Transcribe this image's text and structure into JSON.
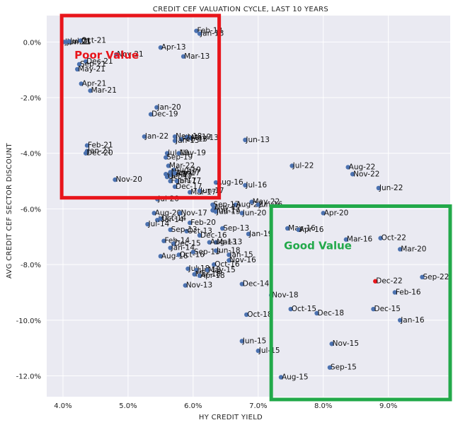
{
  "colors": {
    "background": "#eaeaf2",
    "grid": "#ffffff",
    "point": "#4c72b0",
    "highlight_point": "#e8151b",
    "poor_value_box": "#e8151b",
    "good_value_box": "#22a94a"
  },
  "chart_data": {
    "type": "scatter",
    "title": "CREDIT CEF VALUATION CYCLE, LAST 10 YEARS",
    "xlabel": "HY CREDIT YIELD",
    "ylabel": "AVG CREDIT CEF SECTOR DISCOUNT",
    "xlim": [
      3.75,
      9.95
    ],
    "ylim": [
      -12.75,
      0.95
    ],
    "xticks": [
      4.0,
      5.0,
      6.0,
      7.0,
      8.0,
      9.0
    ],
    "xtick_labels": [
      "4.0%",
      "5.0%",
      "6.0%",
      "7.0%",
      "8.0%",
      "9.0%"
    ],
    "yticks": [
      0,
      -2,
      -4,
      -6,
      -8,
      -10,
      -12
    ],
    "ytick_labels": [
      "0.0%",
      "-2.0%",
      "-4.0%",
      "-6.0%",
      "-8.0%",
      "-10.0%",
      "-12.0%"
    ],
    "grid": true,
    "highlight": "Dec-22",
    "regions": [
      {
        "label": "Poor Value",
        "x_range": [
          3.98,
          6.4
        ],
        "y_range": [
          -5.6,
          0.95
        ],
        "color": "#e8151b"
      },
      {
        "label": "Good Value",
        "x_range": [
          7.2,
          9.95
        ],
        "y_range": [
          -12.85,
          -5.9
        ],
        "color": "#22a94a"
      }
    ],
    "points": [
      {
        "label": "Jan-21",
        "x": 4.02,
        "y": 0.0
      },
      {
        "label": "Jun-21",
        "x": 4.05,
        "y": 0.0
      },
      {
        "label": "Jul-21",
        "x": 4.1,
        "y": 0.02
      },
      {
        "label": "Oct-21",
        "x": 4.27,
        "y": 0.05
      },
      {
        "label": "Nov-21",
        "x": 4.82,
        "y": -0.45
      },
      {
        "label": "Dec-21",
        "x": 4.35,
        "y": -0.7
      },
      {
        "label": "Sep-21",
        "x": 4.25,
        "y": -0.8
      },
      {
        "label": "May-21",
        "x": 4.22,
        "y": -0.98
      },
      {
        "label": "Apr-21",
        "x": 4.28,
        "y": -1.5
      },
      {
        "label": "Mar-21",
        "x": 4.42,
        "y": -1.75
      },
      {
        "label": "Feb-13",
        "x": 6.05,
        "y": 0.4
      },
      {
        "label": "Jan-13",
        "x": 6.1,
        "y": 0.3
      },
      {
        "label": "Apr-13",
        "x": 5.5,
        "y": -0.2
      },
      {
        "label": "Mar-13",
        "x": 5.85,
        "y": -0.52
      },
      {
        "label": "Jan-20",
        "x": 5.44,
        "y": -2.35
      },
      {
        "label": "Dec-19",
        "x": 5.35,
        "y": -2.6
      },
      {
        "label": "Jan-22",
        "x": 5.25,
        "y": -3.4
      },
      {
        "label": "Nov-18",
        "x": 5.72,
        "y": -3.4
      },
      {
        "label": "Jun-19",
        "x": 5.9,
        "y": -3.42
      },
      {
        "label": "May-13",
        "x": 5.96,
        "y": -3.45
      },
      {
        "label": "Feb-13",
        "x": 5.82,
        "y": -3.5
      },
      {
        "label": "Jan-13",
        "x": 5.72,
        "y": -3.55
      },
      {
        "label": "Jun-13",
        "x": 6.8,
        "y": -3.52
      },
      {
        "label": "Feb-21",
        "x": 4.37,
        "y": -3.72
      },
      {
        "label": "Jan-21",
        "x": 4.37,
        "y": -3.92
      },
      {
        "label": "Dec-20",
        "x": 4.35,
        "y": -4.0
      },
      {
        "label": "Jul-19",
        "x": 5.6,
        "y": -4.0
      },
      {
        "label": "Nov-19",
        "x": 5.78,
        "y": -4.0
      },
      {
        "label": "Sep-19",
        "x": 5.58,
        "y": -4.15
      },
      {
        "label": "Mar-22",
        "x": 5.62,
        "y": -4.45
      },
      {
        "label": "Aug-19",
        "x": 5.7,
        "y": -4.6
      },
      {
        "label": "Apr-19",
        "x": 5.58,
        "y": -4.75
      },
      {
        "label": "Jul-17",
        "x": 5.65,
        "y": -4.78
      },
      {
        "label": "Oct-17",
        "x": 5.6,
        "y": -4.85
      },
      {
        "label": "Nov-17",
        "x": 5.65,
        "y": -4.68
      },
      {
        "label": "Apr-17",
        "x": 5.72,
        "y": -4.72
      },
      {
        "label": "Feb-17",
        "x": 5.65,
        "y": -5.0
      },
      {
        "label": "Jan-17",
        "x": 5.75,
        "y": -5.0
      },
      {
        "label": "Dec-17",
        "x": 5.72,
        "y": -5.2
      },
      {
        "label": "Nov-20",
        "x": 4.8,
        "y": -4.95
      },
      {
        "label": "Jul-22",
        "x": 7.52,
        "y": -4.45
      },
      {
        "label": "Aug-22",
        "x": 8.38,
        "y": -4.5
      },
      {
        "label": "Nov-22",
        "x": 8.45,
        "y": -4.75
      },
      {
        "label": "Jun-22",
        "x": 8.85,
        "y": -5.25
      },
      {
        "label": "Aug-16",
        "x": 6.35,
        "y": -5.05
      },
      {
        "label": "Jul-16",
        "x": 6.8,
        "y": -5.15
      },
      {
        "label": "Mar-17",
        "x": 5.95,
        "y": -5.4
      },
      {
        "label": "Jun-17",
        "x": 6.1,
        "y": -5.35
      },
      {
        "label": "Jul-20",
        "x": 5.45,
        "y": -5.65
      },
      {
        "label": "May-22",
        "x": 6.9,
        "y": -5.75
      },
      {
        "label": "Aug-22",
        "x": 6.65,
        "y": -5.85
      },
      {
        "label": "Jun-16",
        "x": 7.0,
        "y": -5.85
      },
      {
        "label": "Sep-17",
        "x": 6.3,
        "y": -5.85
      },
      {
        "label": "Nov-17",
        "x": 6.32,
        "y": -5.95
      },
      {
        "label": "Aug-17",
        "x": 6.3,
        "y": -6.05
      },
      {
        "label": "Jun-19",
        "x": 6.35,
        "y": -6.1
      },
      {
        "label": "Jun-20",
        "x": 6.75,
        "y": -6.15
      },
      {
        "label": "Aug-20",
        "x": 5.4,
        "y": -6.15
      },
      {
        "label": "Nov-17",
        "x": 5.8,
        "y": -6.15
      },
      {
        "label": "Mar-14",
        "x": 5.45,
        "y": -6.4
      },
      {
        "label": "Oct-14",
        "x": 5.5,
        "y": -6.35
      },
      {
        "label": "Jul-14",
        "x": 5.3,
        "y": -6.55
      },
      {
        "label": "Apr-20",
        "x": 8.0,
        "y": -6.15
      },
      {
        "label": "Feb-20",
        "x": 5.95,
        "y": -6.5
      },
      {
        "label": "Sep-13",
        "x": 6.45,
        "y": -6.7
      },
      {
        "label": "Oct-13",
        "x": 5.9,
        "y": -6.8
      },
      {
        "label": "Sep-13",
        "x": 5.65,
        "y": -6.75
      },
      {
        "label": "Dec-16",
        "x": 6.1,
        "y": -6.95
      },
      {
        "label": "Jan-19",
        "x": 6.85,
        "y": -6.9
      },
      {
        "label": "May-16",
        "x": 7.45,
        "y": -6.7
      },
      {
        "label": "Apr-16",
        "x": 7.62,
        "y": -6.75
      },
      {
        "label": "Feb-14",
        "x": 5.55,
        "y": -7.15
      },
      {
        "label": "Mar-13",
        "x": 6.35,
        "y": -7.2
      },
      {
        "label": "Aug-13",
        "x": 6.25,
        "y": -7.2
      },
      {
        "label": "Dec-15",
        "x": 5.7,
        "y": -7.25
      },
      {
        "label": "Jan-14",
        "x": 5.65,
        "y": -7.4
      },
      {
        "label": "Mar-16",
        "x": 8.35,
        "y": -7.1
      },
      {
        "label": "Oct-22",
        "x": 8.88,
        "y": -7.05
      },
      {
        "label": "Mar-20",
        "x": 9.18,
        "y": -7.45
      },
      {
        "label": "Aug-16",
        "x": 5.5,
        "y": -7.7
      },
      {
        "label": "Oct-16",
        "x": 5.78,
        "y": -7.65
      },
      {
        "label": "Sep-16",
        "x": 6.0,
        "y": -7.55
      },
      {
        "label": "Jun-18",
        "x": 6.35,
        "y": -7.5
      },
      {
        "label": "Jan-15",
        "x": 6.55,
        "y": -7.65
      },
      {
        "label": "Nov-16",
        "x": 6.55,
        "y": -7.85
      },
      {
        "label": "Oct-16",
        "x": 6.32,
        "y": -8.0
      },
      {
        "label": "Jul-18",
        "x": 5.92,
        "y": -8.15
      },
      {
        "label": "Jun-18",
        "x": 6.05,
        "y": -8.2
      },
      {
        "label": "May-15",
        "x": 6.22,
        "y": -8.2
      },
      {
        "label": "Mar-18",
        "x": 6.02,
        "y": -8.35
      },
      {
        "label": "Apr-18",
        "x": 6.1,
        "y": -8.4
      },
      {
        "label": "Nov-13",
        "x": 5.88,
        "y": -8.75
      },
      {
        "label": "Dec-14",
        "x": 6.75,
        "y": -8.7
      },
      {
        "label": "Dec-22",
        "x": 8.8,
        "y": -8.6
      },
      {
        "label": "Sep-22",
        "x": 9.52,
        "y": -8.45
      },
      {
        "label": "Feb-16",
        "x": 9.1,
        "y": -9.0
      },
      {
        "label": "Nov-18",
        "x": 7.2,
        "y": -9.1
      },
      {
        "label": "Oct-15",
        "x": 7.5,
        "y": -9.6
      },
      {
        "label": "Dec-15",
        "x": 8.77,
        "y": -9.6
      },
      {
        "label": "Dec-18",
        "x": 7.9,
        "y": -9.75
      },
      {
        "label": "Oct-18",
        "x": 6.82,
        "y": -9.8
      },
      {
        "label": "Jan-16",
        "x": 9.18,
        "y": -10.0
      },
      {
        "label": "Jun-15",
        "x": 6.75,
        "y": -10.75
      },
      {
        "label": "Nov-15",
        "x": 8.13,
        "y": -10.85
      },
      {
        "label": "Jul-15",
        "x": 7.0,
        "y": -11.1
      },
      {
        "label": "Sep-15",
        "x": 8.1,
        "y": -11.7
      },
      {
        "label": "Aug-15",
        "x": 7.35,
        "y": -12.05
      }
    ]
  }
}
